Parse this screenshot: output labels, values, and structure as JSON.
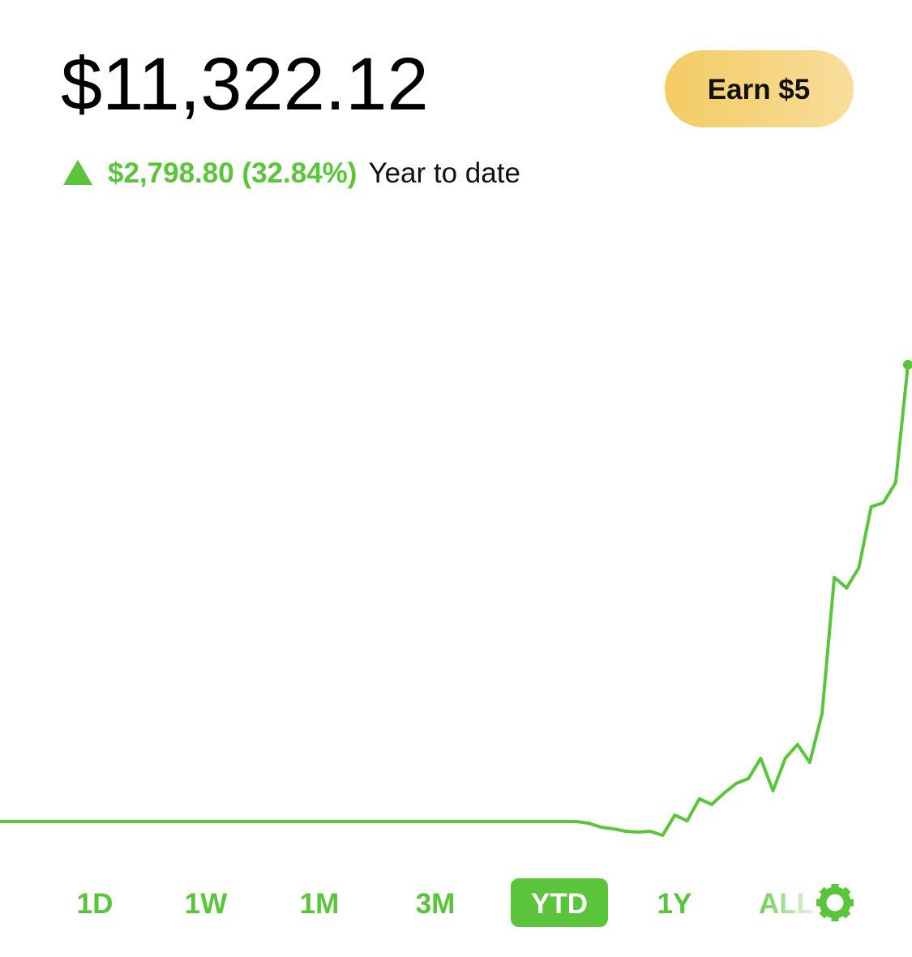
{
  "header": {
    "balance": "$11,322.12",
    "change": "$2,798.80 (32.84%)",
    "period_label": "Year to date",
    "earn_button": "Earn $5"
  },
  "chart_data": {
    "type": "line",
    "color": "#5ac53b",
    "ylim": [
      8300,
      12300
    ],
    "values": [
      8523.32,
      8523.32,
      8523.32,
      8523.32,
      8523.32,
      8523.32,
      8523.32,
      8523.32,
      8523.32,
      8523.32,
      8523.32,
      8523.32,
      8523.32,
      8523.32,
      8523.32,
      8523.32,
      8523.32,
      8523.32,
      8523.32,
      8523.32,
      8523.32,
      8523.32,
      8523.32,
      8523.32,
      8523.32,
      8523.32,
      8523.32,
      8523.32,
      8523.32,
      8523.32,
      8523.32,
      8523.32,
      8523.32,
      8523.32,
      8523.32,
      8523.32,
      8523.32,
      8523.32,
      8523.32,
      8523.32,
      8523.32,
      8523.32,
      8523.32,
      8523.32,
      8523.32,
      8523.32,
      8523.32,
      8523.32,
      8513,
      8489,
      8479,
      8464,
      8459,
      8464,
      8439,
      8563,
      8528,
      8663,
      8628,
      8697,
      8757,
      8787,
      8911,
      8712,
      8911,
      8996,
      8886,
      9185,
      10020,
      9955,
      10079,
      10452,
      10477,
      10601,
      11322.12
    ]
  },
  "range_tabs": [
    "1D",
    "1W",
    "1M",
    "3M",
    "YTD",
    "1Y",
    "ALL"
  ],
  "selected_tab": 4
}
